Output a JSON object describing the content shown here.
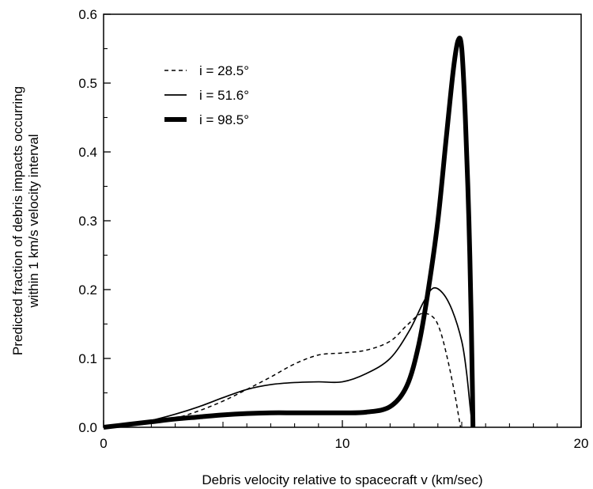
{
  "chart_data": {
    "type": "line",
    "title": "",
    "xlabel": "Debris velocity relative to spacecraft v (km/sec)",
    "ylabel_lines": [
      "Predicted fraction of debris impacts occurring",
      "within 1 km/s velocity interval"
    ],
    "xlim": [
      0,
      20
    ],
    "ylim": [
      0,
      0.6
    ],
    "x_ticks": [
      0,
      10,
      20
    ],
    "x_tick_labels": [
      "0",
      "10",
      "20"
    ],
    "y_ticks": [
      0.0,
      0.1,
      0.2,
      0.3,
      0.4,
      0.5,
      0.6
    ],
    "y_tick_labels": [
      "0.0",
      "0.1",
      "0.2",
      "0.3",
      "0.4",
      "0.5",
      "0.6"
    ],
    "grid": false,
    "legend_position": "top-left",
    "series": [
      {
        "name": "i = 28.5°",
        "style": "dashed",
        "color": "#000000",
        "points": [
          [
            0,
            0
          ],
          [
            1,
            0.002
          ],
          [
            2,
            0.006
          ],
          [
            3,
            0.013
          ],
          [
            4,
            0.024
          ],
          [
            5,
            0.038
          ],
          [
            6,
            0.055
          ],
          [
            7,
            0.073
          ],
          [
            8,
            0.092
          ],
          [
            9,
            0.105
          ],
          [
            10,
            0.108
          ],
          [
            11,
            0.112
          ],
          [
            12,
            0.125
          ],
          [
            12.7,
            0.148
          ],
          [
            13.3,
            0.165
          ],
          [
            13.8,
            0.16
          ],
          [
            14.1,
            0.14
          ],
          [
            14.4,
            0.1
          ],
          [
            14.7,
            0.05
          ],
          [
            14.85,
            0.02
          ],
          [
            14.95,
            0
          ]
        ]
      },
      {
        "name": "i = 51.6°",
        "style": "solid",
        "color": "#000000",
        "points": [
          [
            0,
            0
          ],
          [
            1,
            0.004
          ],
          [
            2,
            0.01
          ],
          [
            3,
            0.019
          ],
          [
            4,
            0.03
          ],
          [
            5,
            0.043
          ],
          [
            6,
            0.055
          ],
          [
            7,
            0.062
          ],
          [
            8,
            0.065
          ],
          [
            9,
            0.066
          ],
          [
            10,
            0.066
          ],
          [
            11,
            0.078
          ],
          [
            12,
            0.1
          ],
          [
            12.8,
            0.14
          ],
          [
            13.4,
            0.182
          ],
          [
            13.8,
            0.202
          ],
          [
            14.2,
            0.195
          ],
          [
            14.6,
            0.17
          ],
          [
            15.0,
            0.125
          ],
          [
            15.2,
            0.08
          ],
          [
            15.35,
            0.03
          ],
          [
            15.45,
            0
          ]
        ]
      },
      {
        "name": "i = 98.5°",
        "style": "bold",
        "color": "#000000",
        "points": [
          [
            0,
            0
          ],
          [
            1,
            0.004
          ],
          [
            2,
            0.008
          ],
          [
            3,
            0.012
          ],
          [
            4,
            0.015
          ],
          [
            5,
            0.018
          ],
          [
            6,
            0.02
          ],
          [
            7,
            0.021
          ],
          [
            8,
            0.021
          ],
          [
            9,
            0.021
          ],
          [
            10,
            0.021
          ],
          [
            11,
            0.022
          ],
          [
            12,
            0.03
          ],
          [
            12.7,
            0.06
          ],
          [
            13.2,
            0.12
          ],
          [
            13.6,
            0.2
          ],
          [
            14.0,
            0.3
          ],
          [
            14.35,
            0.42
          ],
          [
            14.65,
            0.52
          ],
          [
            14.85,
            0.562
          ],
          [
            15.0,
            0.55
          ],
          [
            15.15,
            0.45
          ],
          [
            15.3,
            0.3
          ],
          [
            15.4,
            0.15
          ],
          [
            15.45,
            0.05
          ],
          [
            15.47,
            0
          ]
        ]
      }
    ]
  }
}
